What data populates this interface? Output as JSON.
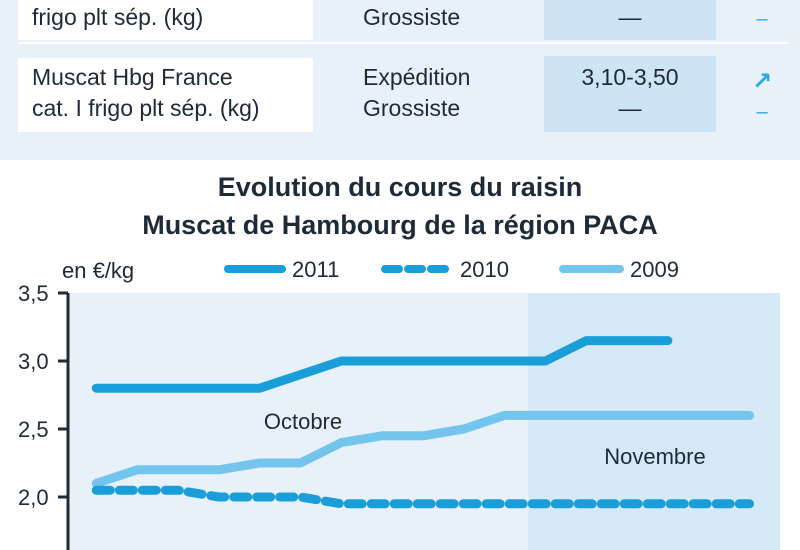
{
  "table": {
    "rows": [
      {
        "product_lines": [
          "frigo plt sép. (kg)"
        ],
        "stages": [
          "Grossiste"
        ],
        "prices": [
          "—"
        ],
        "trends": [
          "–"
        ]
      },
      {
        "product_lines": [
          "Muscat Hbg France",
          "cat. I frigo plt sép. (kg)"
        ],
        "stages": [
          "Expédition",
          "Grossiste"
        ],
        "prices": [
          "3,10-3,50",
          "—"
        ],
        "trends": [
          "↗",
          "–"
        ]
      }
    ]
  },
  "colors": {
    "series_2011": "#1a9ed9",
    "series_2010": "#1a9ed9",
    "series_2009": "#74c5ee",
    "plot_bg": "#e8f1f9",
    "plot_bg_alt": "#d6e9f6",
    "panel_bg": "#e8f1f9",
    "axis": "#1e2a38"
  },
  "chart_data": {
    "type": "line",
    "title": "Evolution du cours du raisin",
    "subtitle": "Muscat de Hambourg de la région PACA",
    "ylabel": "en €/kg",
    "ylim": [
      1.5,
      3.5
    ],
    "yticks": [
      2.0,
      2.5,
      3.0,
      3.5
    ],
    "ytick_labels": [
      "2,0",
      "2,5",
      "3,0",
      "3,5"
    ],
    "x": [
      1,
      2,
      3,
      4,
      5,
      6,
      7,
      8,
      9,
      10,
      11,
      12,
      13,
      14,
      15,
      16,
      17
    ],
    "xlim": [
      0.6,
      17.5
    ],
    "period_labels": [
      "Octobre",
      "Novembre"
    ],
    "legend_position": "top",
    "series": [
      {
        "name": "2011",
        "style": "solid",
        "values": [
          2.8,
          2.8,
          2.8,
          2.8,
          2.8,
          2.9,
          3.0,
          3.0,
          3.0,
          3.0,
          3.0,
          3.0,
          3.15,
          3.15,
          3.15,
          null,
          null
        ]
      },
      {
        "name": "2010",
        "style": "dashed",
        "values": [
          2.05,
          2.05,
          2.05,
          2.0,
          2.0,
          2.0,
          1.95,
          1.95,
          1.95,
          1.95,
          1.95,
          1.95,
          1.95,
          1.95,
          1.95,
          1.95,
          1.95
        ]
      },
      {
        "name": "2009",
        "style": "light",
        "values": [
          2.1,
          2.2,
          2.2,
          2.2,
          2.25,
          2.25,
          2.4,
          2.45,
          2.45,
          2.5,
          2.6,
          2.6,
          2.6,
          2.6,
          2.6,
          2.6,
          2.6
        ]
      }
    ]
  }
}
